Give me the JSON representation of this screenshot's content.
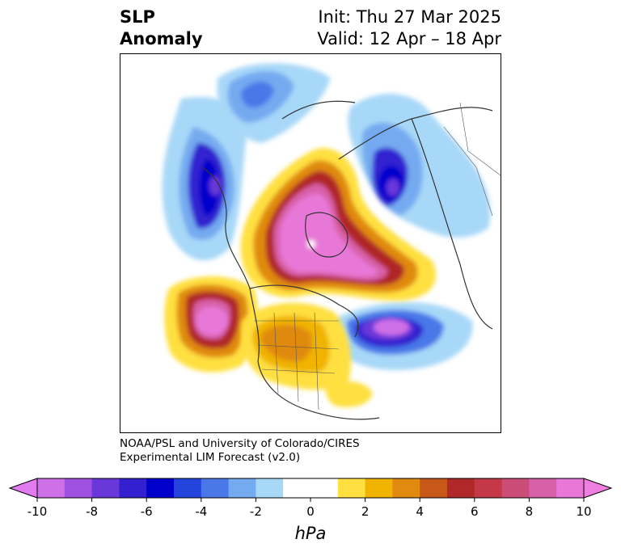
{
  "title": {
    "left": [
      "SLP",
      "Anomaly"
    ],
    "right": [
      "Init: Thu 27 Mar 2025",
      "Valid: 12 Apr – 18 Apr"
    ]
  },
  "credit": [
    "NOAA/PSL and University of Colorado/CIRES",
    "Experimental LIM Forecast (v2.0)"
  ],
  "colorbar": {
    "unit": "hPa",
    "ticks": [
      "-10",
      "-8",
      "-6",
      "-4",
      "-2",
      "0",
      "2",
      "4",
      "6",
      "8",
      "10"
    ],
    "colors": [
      "#d070e8",
      "#a050e0",
      "#6a38d8",
      "#3320d0",
      "#0000cc",
      "#2244dd",
      "#4a78e8",
      "#74aaf0",
      "#a8d8f8",
      "#ffffff",
      "#ffffff",
      "#ffe040",
      "#f0b400",
      "#e08a10",
      "#c85818",
      "#b02828",
      "#c43848",
      "#cc4c78",
      "#d860a8",
      "#e878d8"
    ]
  }
}
